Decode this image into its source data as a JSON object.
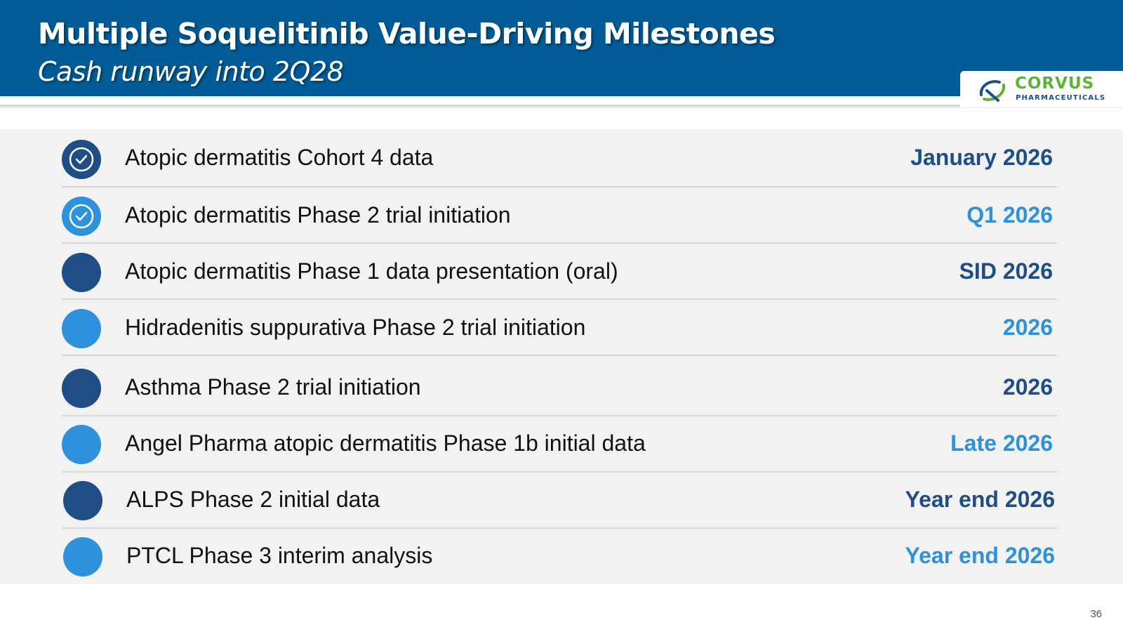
{
  "header": {
    "title": "Multiple Soquelitinib Value-Driving Milestones",
    "subtitle": "Cash runway into 2Q28"
  },
  "logo": {
    "name": "CORVUS",
    "subtitle": "PHARMACEUTICALS",
    "mark_icon": "corvus-logo-icon"
  },
  "colors": {
    "header_bg": "#005b96",
    "dark_blue": "#1f4e87",
    "light_blue": "#2e91dc",
    "logo_green": "#5cb335"
  },
  "milestones": [
    {
      "label": "Atopic dermatitis Cohort 4 data",
      "date": "January 2026",
      "tone": "dark",
      "completed": true,
      "icon": "check-circle-icon"
    },
    {
      "label": "Atopic dermatitis Phase 2 trial initiation",
      "date": "Q1 2026",
      "tone": "light",
      "completed": true,
      "icon": "check-circle-icon"
    },
    {
      "label": "Atopic dermatitis Phase 1 data presentation (oral)",
      "date": "SID 2026",
      "tone": "dark",
      "completed": false
    },
    {
      "label": "Hidradenitis suppurativa Phase 2 trial initiation",
      "date": "2026",
      "tone": "light",
      "completed": false
    },
    {
      "label": "Asthma Phase 2 trial initiation",
      "date": "2026",
      "tone": "dark",
      "completed": false
    },
    {
      "label": "Angel Pharma atopic dermatitis Phase 1b initial data",
      "date": "Late 2026",
      "tone": "light",
      "completed": false
    },
    {
      "label": "ALPS Phase 2 initial data",
      "date": "Year end 2026",
      "tone": "dark",
      "completed": false
    },
    {
      "label": "PTCL Phase 3 interim analysis",
      "date": "Year end 2026",
      "tone": "light",
      "completed": false
    }
  ],
  "page_number": "36"
}
